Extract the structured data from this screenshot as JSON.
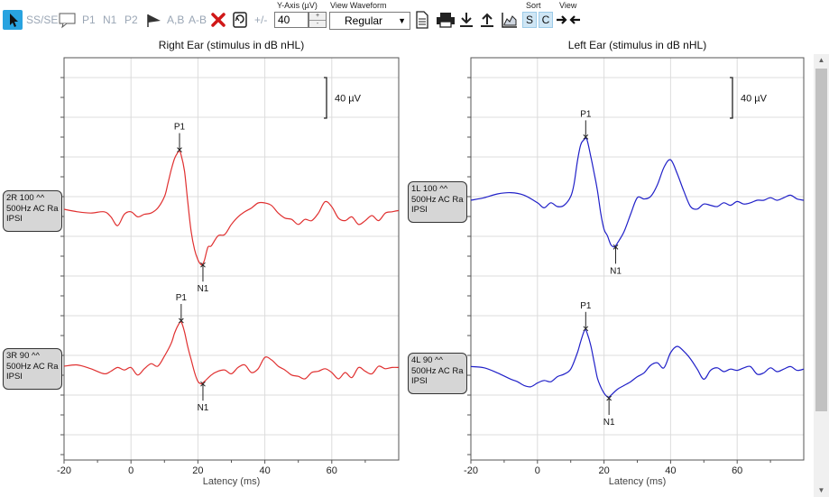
{
  "toolbar": {
    "ss_se": "SS/SE",
    "p1": "P1",
    "n1": "N1",
    "p2": "P2",
    "ab_comma": "A,B",
    "ab_minus": "A-B",
    "plus_minus": "+/-",
    "y_axis_label": "Y-Axis (µV)",
    "y_axis_value": "40",
    "view_waveform_label": "View Waveform",
    "view_waveform_value": "Regular",
    "sort_label": "Sort",
    "sort_s": "S",
    "sort_c": "C",
    "view_label": "View"
  },
  "charts": [
    {
      "title": "Right Ear (stimulus in dB nHL)",
      "xlabel": "Latency (ms)",
      "x_ticks": [
        "-20",
        "0",
        "20",
        "40",
        "60"
      ],
      "scale_label": "40 µV",
      "color": "#e03030",
      "traces": [
        {
          "label_lines": [
            "2R 100 ^^",
            "500Hz AC Ra",
            "IPSI"
          ],
          "p1": "P1",
          "n1": "N1",
          "p1_ms": 14.5,
          "n1_ms": 21.5
        },
        {
          "label_lines": [
            "3R 90 ^^",
            "500Hz AC Ra",
            "IPSI"
          ],
          "p1": "P1",
          "n1": "N1",
          "p1_ms": 15,
          "n1_ms": 21.5
        }
      ]
    },
    {
      "title": "Left Ear (stimulus in dB nHL)",
      "xlabel": "Latency (ms)",
      "x_ticks": [
        "-20",
        "0",
        "20",
        "40",
        "60"
      ],
      "scale_label": "40 µV",
      "color": "#2020c8",
      "traces": [
        {
          "label_lines": [
            "1L 100 ^^",
            "500Hz AC Ra",
            "IPSI"
          ],
          "p1": "P1",
          "n1": "N1",
          "p1_ms": 14.5,
          "n1_ms": 23.5
        },
        {
          "label_lines": [
            "4L 90 ^^",
            "500Hz AC Ra",
            "IPSI"
          ],
          "p1": "P1",
          "n1": "N1",
          "p1_ms": 14.5,
          "n1_ms": 21.5
        }
      ]
    }
  ],
  "chart_data": [
    {
      "type": "line",
      "title": "Right Ear (stimulus in dB nHL)",
      "xlabel": "Latency (ms)",
      "ylabel": "",
      "xlim": [
        -20,
        80
      ],
      "series": [
        {
          "name": "2R 100 ^^",
          "x": [
            -20,
            -16,
            -12,
            -8,
            -6,
            -4,
            -2,
            0,
            2,
            4,
            6,
            8,
            10,
            11,
            12,
            13,
            14,
            14.5,
            15,
            16,
            17,
            18,
            19,
            20,
            21,
            21.5,
            22,
            23,
            24,
            26,
            28,
            30,
            32,
            34,
            36,
            38,
            40,
            42,
            44,
            46,
            48,
            50,
            52,
            54,
            56,
            58,
            60,
            62,
            64,
            66,
            68,
            70,
            72,
            74,
            76,
            78,
            80
          ],
          "y": [
            0,
            -4,
            -6,
            -4,
            -12,
            -26,
            -8,
            -4,
            -12,
            -8,
            -6,
            2,
            20,
            40,
            62,
            80,
            90,
            92,
            86,
            60,
            10,
            -36,
            -64,
            -80,
            -88,
            -86,
            -80,
            -60,
            -58,
            -42,
            -40,
            -24,
            -12,
            -4,
            2,
            10,
            10,
            6,
            -6,
            -14,
            -16,
            -24,
            -16,
            -18,
            -6,
            12,
            4,
            -14,
            -18,
            -12,
            -24,
            -18,
            -10,
            -18,
            -6,
            -4,
            -2
          ]
        },
        {
          "name": "3R 90 ^^",
          "x": [
            -20,
            -16,
            -12,
            -8,
            -6,
            -4,
            -2,
            0,
            2,
            4,
            6,
            8,
            10,
            12,
            13,
            14,
            15,
            16,
            17,
            18,
            19,
            20,
            21,
            21.5,
            22,
            24,
            26,
            28,
            30,
            32,
            34,
            36,
            38,
            40,
            42,
            44,
            46,
            48,
            50,
            52,
            54,
            56,
            58,
            60,
            62,
            64,
            66,
            68,
            70,
            72,
            74,
            76,
            78,
            80
          ],
          "y": [
            0,
            2,
            -4,
            -12,
            -8,
            -2,
            -6,
            -2,
            -14,
            -4,
            4,
            0,
            16,
            36,
            52,
            64,
            70,
            54,
            30,
            10,
            -10,
            -24,
            -28,
            -26,
            -24,
            -14,
            -8,
            -6,
            -12,
            -2,
            2,
            -10,
            -4,
            14,
            10,
            0,
            -6,
            -14,
            -16,
            -20,
            -10,
            -8,
            -4,
            -10,
            -20,
            -10,
            -18,
            -2,
            -8,
            -12,
            0,
            -4,
            -2,
            -2
          ]
        }
      ]
    },
    {
      "type": "line",
      "title": "Left Ear (stimulus in dB nHL)",
      "xlabel": "Latency (ms)",
      "ylabel": "",
      "xlim": [
        -20,
        80
      ],
      "series": [
        {
          "name": "1L 100 ^^",
          "x": [
            -20,
            -16,
            -12,
            -8,
            -4,
            0,
            2,
            4,
            6,
            8,
            10,
            11,
            12,
            13,
            14,
            14.5,
            15,
            16,
            17,
            18,
            19,
            20,
            21,
            22,
            23,
            23.5,
            24,
            26,
            28,
            30,
            32,
            34,
            36,
            38,
            40,
            42,
            44,
            46,
            48,
            50,
            52,
            54,
            56,
            58,
            60,
            62,
            64,
            66,
            68,
            70,
            72,
            74,
            76,
            78,
            80
          ],
          "y": [
            0,
            4,
            10,
            12,
            8,
            -4,
            -12,
            -4,
            -10,
            -8,
            6,
            26,
            62,
            88,
            96,
            98,
            94,
            70,
            44,
            16,
            -20,
            -46,
            -56,
            -70,
            -74,
            -72,
            -68,
            -50,
            -22,
            4,
            2,
            6,
            24,
            52,
            64,
            42,
            14,
            -10,
            -14,
            -6,
            -8,
            -10,
            -4,
            -8,
            -2,
            -6,
            -4,
            0,
            0,
            4,
            0,
            4,
            8,
            2,
            0
          ]
        },
        {
          "name": "4L 90 ^^",
          "x": [
            -20,
            -16,
            -12,
            -8,
            -6,
            -4,
            -2,
            0,
            2,
            4,
            6,
            8,
            10,
            12,
            13,
            14,
            14.5,
            15,
            16,
            17,
            18,
            19,
            20,
            21,
            21.5,
            22,
            24,
            26,
            28,
            30,
            32,
            34,
            36,
            38,
            40,
            42,
            44,
            46,
            48,
            50,
            52,
            54,
            56,
            58,
            60,
            62,
            64,
            66,
            68,
            70,
            72,
            74,
            76,
            78,
            80
          ],
          "y": [
            8,
            6,
            -2,
            -12,
            -16,
            -22,
            -24,
            -18,
            -14,
            -16,
            -8,
            -4,
            4,
            30,
            48,
            64,
            66,
            60,
            42,
            16,
            -10,
            -24,
            -34,
            -40,
            -40,
            -38,
            -28,
            -22,
            -16,
            -8,
            -2,
            10,
            14,
            6,
            30,
            40,
            32,
            20,
            4,
            -12,
            2,
            6,
            0,
            4,
            2,
            6,
            8,
            -4,
            -2,
            6,
            0,
            4,
            8,
            2,
            4
          ]
        }
      ]
    }
  ]
}
